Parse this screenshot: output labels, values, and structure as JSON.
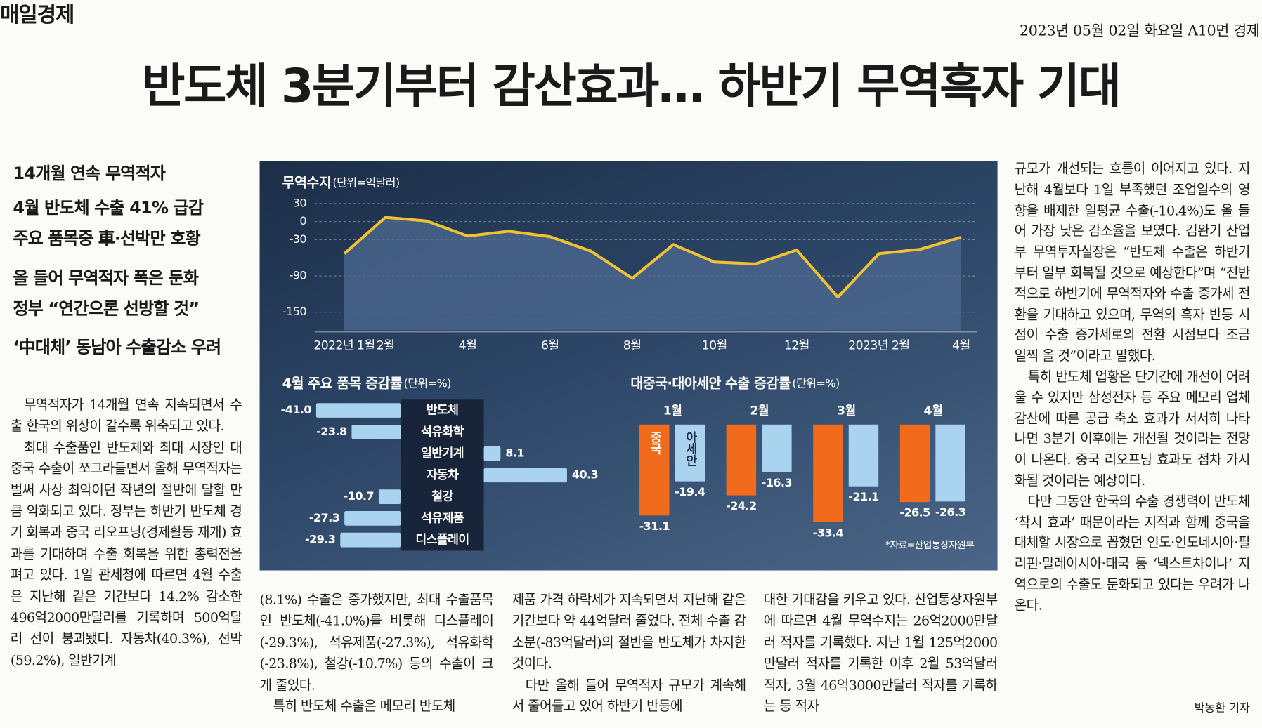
{
  "masthead": "매일경제",
  "dateline": "2023년 05월 02일 화요일 A10면 경제",
  "headline": "반도체 3분기부터 감산효과… 하반기 무역흑자 기대",
  "subheads": [
    "14개월 연속 무역적자",
    "4월 반도체 수출 41% 급감",
    "주요 품목중 車·선박만 호황",
    "올 들어 무역적자 폭은 둔화",
    "정부 “연간으론 선방할 것”",
    "‘中대체’ 동남아 수출감소 우려"
  ],
  "columns": [
    [
      "무역적자가 14개월 연속 지속되면서 수출 한국의 위상이 갈수록 위축되고 있다.",
      "최대 수출품인 반도체와 최대 시장인 대중국 수출이 쪼그라들면서 올해 무역적자는 벌써 사상 최악이던 작년의 절반에 달할 만큼 악화되고 있다. 정부는 하반기 반도체 경기 회복과 중국 리오프닝(경제활동 재개) 효과를 기대하며 수출 회복을 위한 총력전을 펴고 있다. 1일 관세청에 따르면 4월 수출은 지난해 같은 기간보다 14.2% 감소한 496억2000만달러를 기록하며 500억달러 선이 붕괴됐다. 자동차(40.3%), 선박(59.2%), 일반기계"
    ],
    [
      "(8.1%) 수출은 증가했지만, 최대 수출품목인 반도체(-41.0%)를 비롯해 디스플레이(-29.3%), 석유제품(-27.3%), 석유화학(-23.8%), 철강(-10.7%) 등의 수출이 크게 줄었다.",
      "특히 반도체 수출은 메모리 반도체"
    ],
    [
      "제품 가격 하락세가 지속되면서 지난해 같은 기간보다 약 44억달러 줄었다. 전체 수출 감소분(-83억달러)의 절반을 반도체가 차지한 것이다.",
      "다만 올해 들어 무역적자 규모가 계속해서 줄어들고 있어 하반기 반등에"
    ],
    [
      "대한 기대감을 키우고 있다. 산업통상자원부에 따르면 4월 무역수지는 26억2000만달러 적자를 기록했다. 지난 1월 125억2000만달러 적자를 기록한 이후 2월 53억달러 적자, 3월 46억3000만달러 적자를 기록하는 등 적자"
    ],
    [
      "규모가 개선되는 흐름이 이어지고 있다. 지난해 4월보다 1일 부족했던 조업일수의 영향을 배제한 일평균 수출(-10.4%)도 올 들어 가장 낮은 감소율을 보였다. 김완기 산업부 무역투자실장은 “반도체 수출은 하반기부터 일부 회복될 것으로 예상한다”며 “전반적으로 하반기에 무역적자와 수출 증가세 전환을 기대하고 있으며, 무역의 흑자 반등 시점이 수출 증가세로의 전환 시점보다 조금 일찍 올 것”이라고 말했다.",
      "특히 반도체 업황은 단기간에 개선이 어려울 수 있지만 삼성전자 등 주요 메모리 업체 감산에 따른 공급 축소 효과가 서서히 나타나면 3분기 이후에는 개선될 것이라는 전망이 나온다. 중국 리오프닝 효과도 점차 가시화될 것이라는 예상이다.",
      "다만 그동안 한국의 수출 경쟁력이 반도체 ‘착시 효과’ 때문이라는 지적과 함께 중국을 대체할 시장으로 꼽혔던 인도·인도네시아·필리핀·말레이시아·태국 등 ‘넥스트차이나’ 지역으로의 수출도 둔화되고 있다는 우려가 나온다."
    ]
  ],
  "byline": "박동환 기자",
  "chart_data": [
    {
      "type": "line",
      "title": "무역수지",
      "unit": "(단위=억달러)",
      "categories": [
        "2022년 1월",
        "2월",
        null,
        "4월",
        null,
        "6월",
        null,
        "8월",
        null,
        "10월",
        null,
        "12월",
        null,
        "2023년 2월",
        null,
        "4월"
      ],
      "values": [
        -53,
        7,
        1,
        -24,
        -16,
        -25,
        -49,
        -94,
        -38,
        -67,
        -70,
        -47,
        -125,
        -53,
        -46,
        -26
      ],
      "color": "#f2c232",
      "area_color": "#4d6a91",
      "ylim": [
        -180,
        60
      ],
      "yticks": [
        30,
        0,
        -30,
        -90,
        -150
      ],
      "grid": true
    },
    {
      "type": "barh",
      "title": "4월 주요 품목 증감률",
      "unit": "(단위=%)",
      "categories": [
        "반도체",
        "석유화학",
        "일반기계",
        "자동차",
        "철강",
        "석유제품",
        "디스플레이"
      ],
      "values": [
        -41.0,
        -23.8,
        8.1,
        40.3,
        -10.7,
        -27.3,
        -29.3
      ],
      "value_labels": [
        "-41.0",
        "-23.8",
        "8.1",
        "40.3",
        "-10.7",
        "-27.3",
        "-29.3"
      ],
      "color": "#a9d3ef"
    },
    {
      "type": "bar",
      "title": "대중국·대아세안 수출 증감률",
      "unit": "(단위=%)",
      "categories": [
        "1월",
        "2월",
        "3월",
        "4월"
      ],
      "series": [
        {
          "name": "중국",
          "color": "#f26b1d",
          "values": [
            -31.1,
            -24.2,
            -33.4,
            -26.5
          ]
        },
        {
          "name": "아세안",
          "color": "#a9d3ef",
          "values": [
            -19.4,
            -16.3,
            -21.1,
            -26.3
          ]
        }
      ],
      "source": "*자료=산업통상자원부"
    }
  ]
}
